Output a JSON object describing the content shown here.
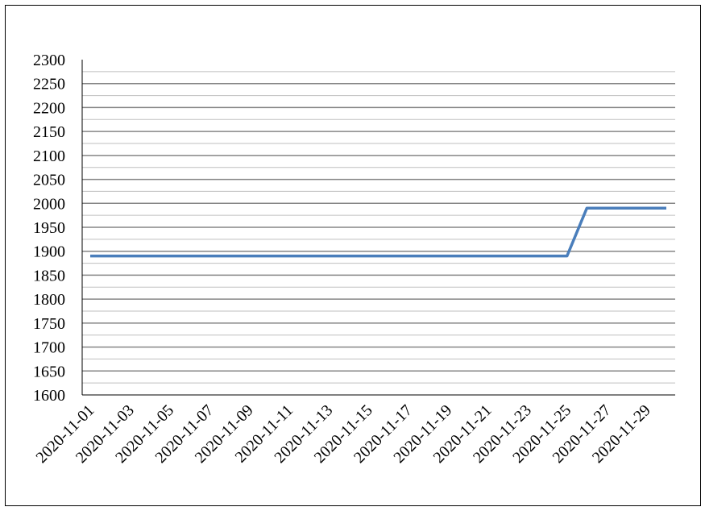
{
  "chart_data": {
    "type": "line",
    "title": "",
    "xlabel": "",
    "ylabel": "",
    "ylim": [
      1600,
      2300
    ],
    "yticks": [
      1600,
      1650,
      1700,
      1750,
      1800,
      1850,
      1900,
      1950,
      2000,
      2050,
      2100,
      2150,
      2200,
      2250,
      2300
    ],
    "grid": "horizontal major and minor",
    "legend": "none",
    "x": [
      "2020-11-01",
      "2020-11-02",
      "2020-11-03",
      "2020-11-04",
      "2020-11-05",
      "2020-11-06",
      "2020-11-07",
      "2020-11-08",
      "2020-11-09",
      "2020-11-10",
      "2020-11-11",
      "2020-11-12",
      "2020-11-13",
      "2020-11-14",
      "2020-11-15",
      "2020-11-16",
      "2020-11-17",
      "2020-11-18",
      "2020-11-19",
      "2020-11-20",
      "2020-11-21",
      "2020-11-22",
      "2020-11-23",
      "2020-11-24",
      "2020-11-25",
      "2020-11-26",
      "2020-11-27",
      "2020-11-28",
      "2020-11-29",
      "2020-11-30"
    ],
    "xtick_labels": [
      "2020-11-01",
      "2020-11-03",
      "2020-11-05",
      "2020-11-07",
      "2020-11-09",
      "2020-11-11",
      "2020-11-13",
      "2020-11-15",
      "2020-11-17",
      "2020-11-19",
      "2020-11-21",
      "2020-11-23",
      "2020-11-25",
      "2020-11-27",
      "2020-11-29"
    ],
    "series": [
      {
        "values": [
          1890,
          1890,
          1890,
          1890,
          1890,
          1890,
          1890,
          1890,
          1890,
          1890,
          1890,
          1890,
          1890,
          1890,
          1890,
          1890,
          1890,
          1890,
          1890,
          1890,
          1890,
          1890,
          1890,
          1890,
          1890,
          1990,
          1990,
          1990,
          1990,
          1990
        ],
        "color": "#4a7ebb"
      }
    ],
    "colors": {
      "major_grid": "#868686",
      "minor_grid": "#bfbfbf",
      "axis": "#000000"
    }
  }
}
